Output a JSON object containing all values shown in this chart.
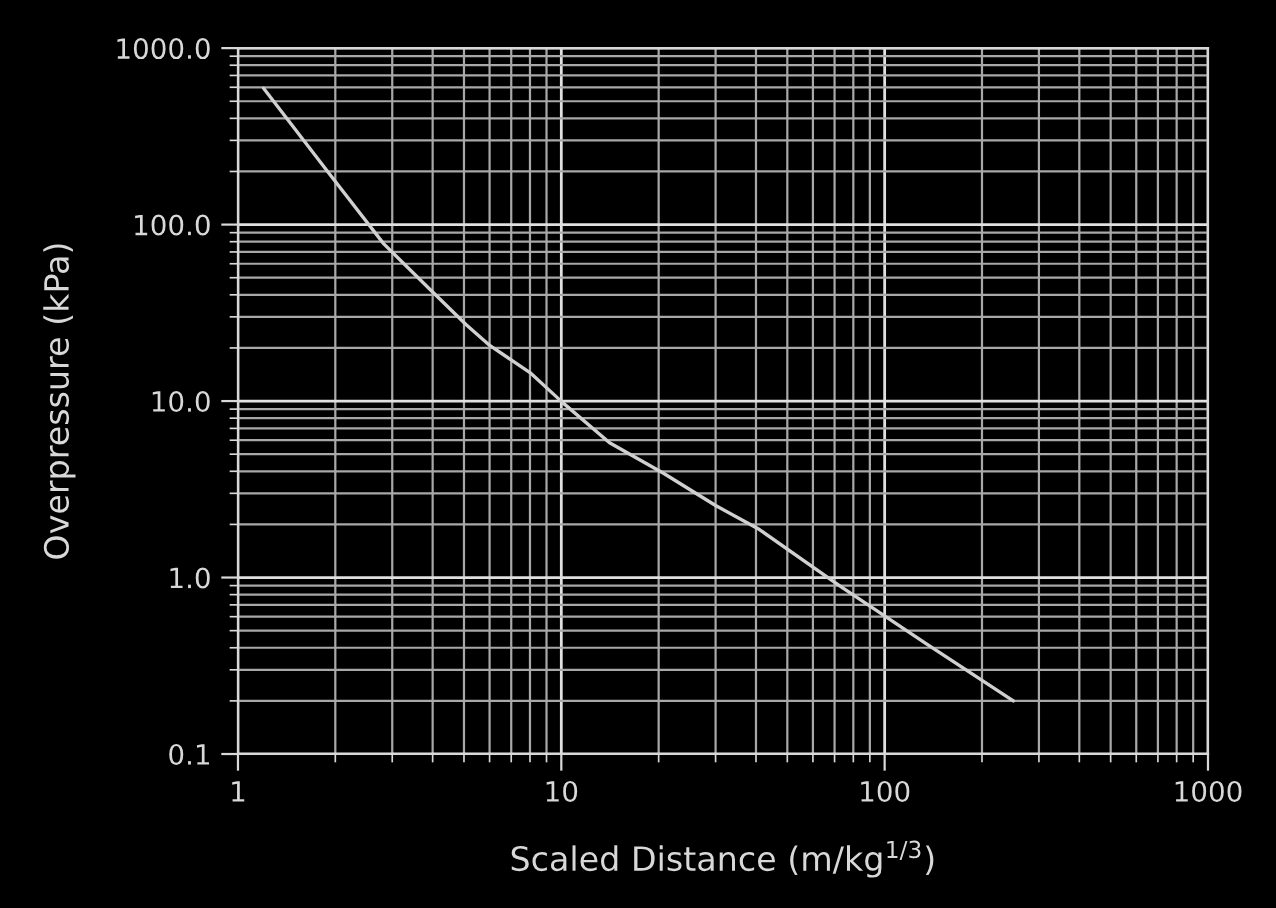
{
  "chart_data": {
    "type": "line",
    "xlabel": "Scaled Distance (m/kg$^{1/3}$)",
    "ylabel": "Overpressure (kPa)",
    "series": [
      {
        "color": "#d0d0d0",
        "x": [
          1.2,
          1.93,
          2.82,
          3.92,
          5.09,
          6.02,
          8.0,
          10.1,
          14.1,
          20.7,
          30,
          41,
          73,
          135,
          250
        ],
        "values": [
          593,
          191,
          78,
          43,
          27,
          20.6,
          14.5,
          9.8,
          5.8,
          3.9,
          2.56,
          1.87,
          0.89,
          0.42,
          0.2
        ]
      }
    ],
    "log": "xy",
    "xlim": [
      1,
      1000
    ],
    "xticks": [
      1,
      10,
      100,
      1000
    ],
    "ylim": [
      0.1,
      1000
    ],
    "yticks": [
      {
        "value": 0.1,
        "label": "0.1"
      },
      {
        "value": 1,
        "label": "1.0"
      },
      {
        "value": 10,
        "label": "10.0"
      },
      {
        "value": 100,
        "label": "100.0"
      },
      {
        "value": 1000,
        "label": "1000.0"
      }
    ],
    "grid": true,
    "marker": "none",
    "line_style": "solid"
  }
}
